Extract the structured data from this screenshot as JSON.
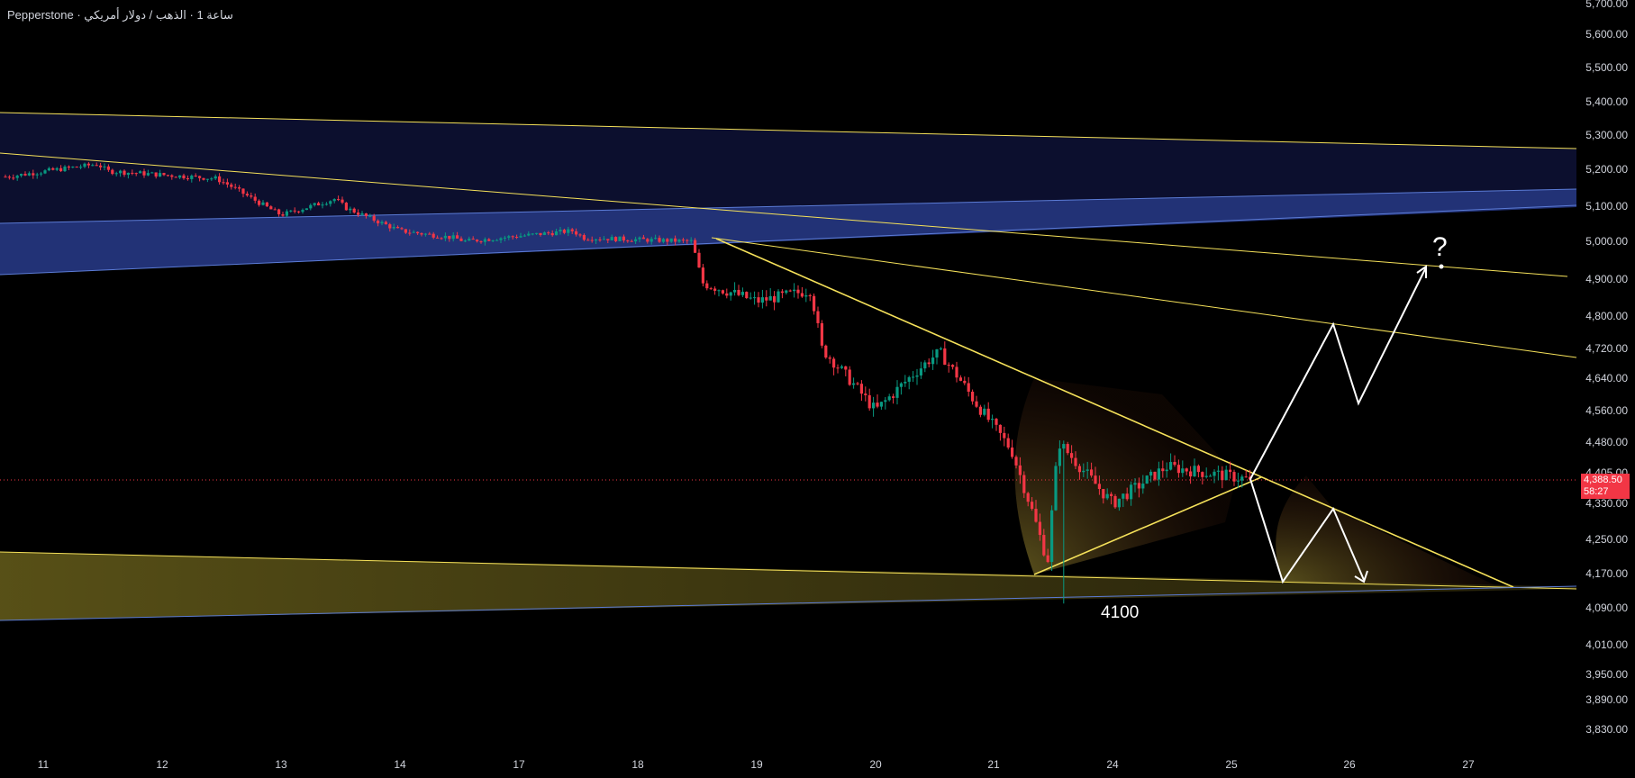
{
  "header": {
    "symbol_title": "Pepperstone · ساعة 1 · الذهب / دولار أمريكي"
  },
  "price_badge": {
    "price": "4,388.50",
    "countdown": "58:27"
  },
  "annotations": {
    "level_label": "4100",
    "question_mark": "?"
  },
  "colors": {
    "background": "#000000",
    "candle_up": "#089981",
    "candle_down": "#f23645",
    "channel_fill_blue": "#2a3f8f",
    "trendline_yellow": "#f5e15a",
    "zone_fill_olive": "#5c5418",
    "projection_white": "#ffffff",
    "current_price_line": "#f23645"
  },
  "chart_data": {
    "type": "candlestick",
    "title": "",
    "xlabel": "",
    "ylabel": "",
    "ylim": [
      3790,
      5700
    ],
    "x_ticks": [
      "11",
      "12",
      "13",
      "14",
      "17",
      "18",
      "19",
      "20",
      "21",
      "24",
      "25",
      "26",
      "27"
    ],
    "y_ticks": [
      "5,700.00",
      "5,600.00",
      "5,500.00",
      "5,400.00",
      "5,300.00",
      "5,200.00",
      "5,100.00",
      "5,000.00",
      "4,900.00",
      "4,800.00",
      "4,720.00",
      "4,640.00",
      "4,560.00",
      "4,480.00",
      "4,405.00",
      "4,330.00",
      "4,250.00",
      "4,170.00",
      "4,090.00",
      "4,010.00",
      "3,950.00",
      "3,890.00",
      "3,830.00"
    ],
    "current_price": 4388.5,
    "price_path": [
      {
        "day": "11",
        "price": 5180
      },
      {
        "day": "11",
        "price": 5215
      },
      {
        "day": "12",
        "price": 5195
      },
      {
        "day": "12",
        "price": 5175
      },
      {
        "day": "13",
        "price": 5160
      },
      {
        "day": "13",
        "price": 5075
      },
      {
        "day": "13",
        "price": 5120
      },
      {
        "day": "14",
        "price": 5095
      },
      {
        "day": "14",
        "price": 5030
      },
      {
        "day": "14",
        "price": 5010
      },
      {
        "day": "17",
        "price": 5000
      },
      {
        "day": "17",
        "price": 5030
      },
      {
        "day": "18",
        "price": 5010
      },
      {
        "day": "18",
        "price": 5000
      },
      {
        "day": "19",
        "price": 4890
      },
      {
        "day": "19",
        "price": 4840
      },
      {
        "day": "19",
        "price": 4870
      },
      {
        "day": "20",
        "price": 4720
      },
      {
        "day": "20",
        "price": 4560
      },
      {
        "day": "20",
        "price": 4690
      },
      {
        "day": "21",
        "price": 4710
      },
      {
        "day": "21",
        "price": 4580
      },
      {
        "day": "21",
        "price": 4460
      },
      {
        "day": "21",
        "price": 4200
      },
      {
        "day": "24",
        "price": 4480
      },
      {
        "day": "24",
        "price": 4330
      },
      {
        "day": "24",
        "price": 4420
      },
      {
        "day": "25",
        "price": 4388.5
      }
    ],
    "swing_low": 4100,
    "projected_path": [
      {
        "day": "25",
        "price": 4388.5
      },
      {
        "day": "26",
        "price": 4780
      },
      {
        "day": "26",
        "price": 4580
      },
      {
        "day": "27",
        "price": 4940
      }
    ],
    "alternate_path": [
      {
        "day": "25",
        "price": 4388.5
      },
      {
        "day": "25",
        "price": 4150
      },
      {
        "day": "26",
        "price": 4320
      },
      {
        "day": "26",
        "price": 4150
      }
    ],
    "grid": false,
    "legend": "none"
  }
}
